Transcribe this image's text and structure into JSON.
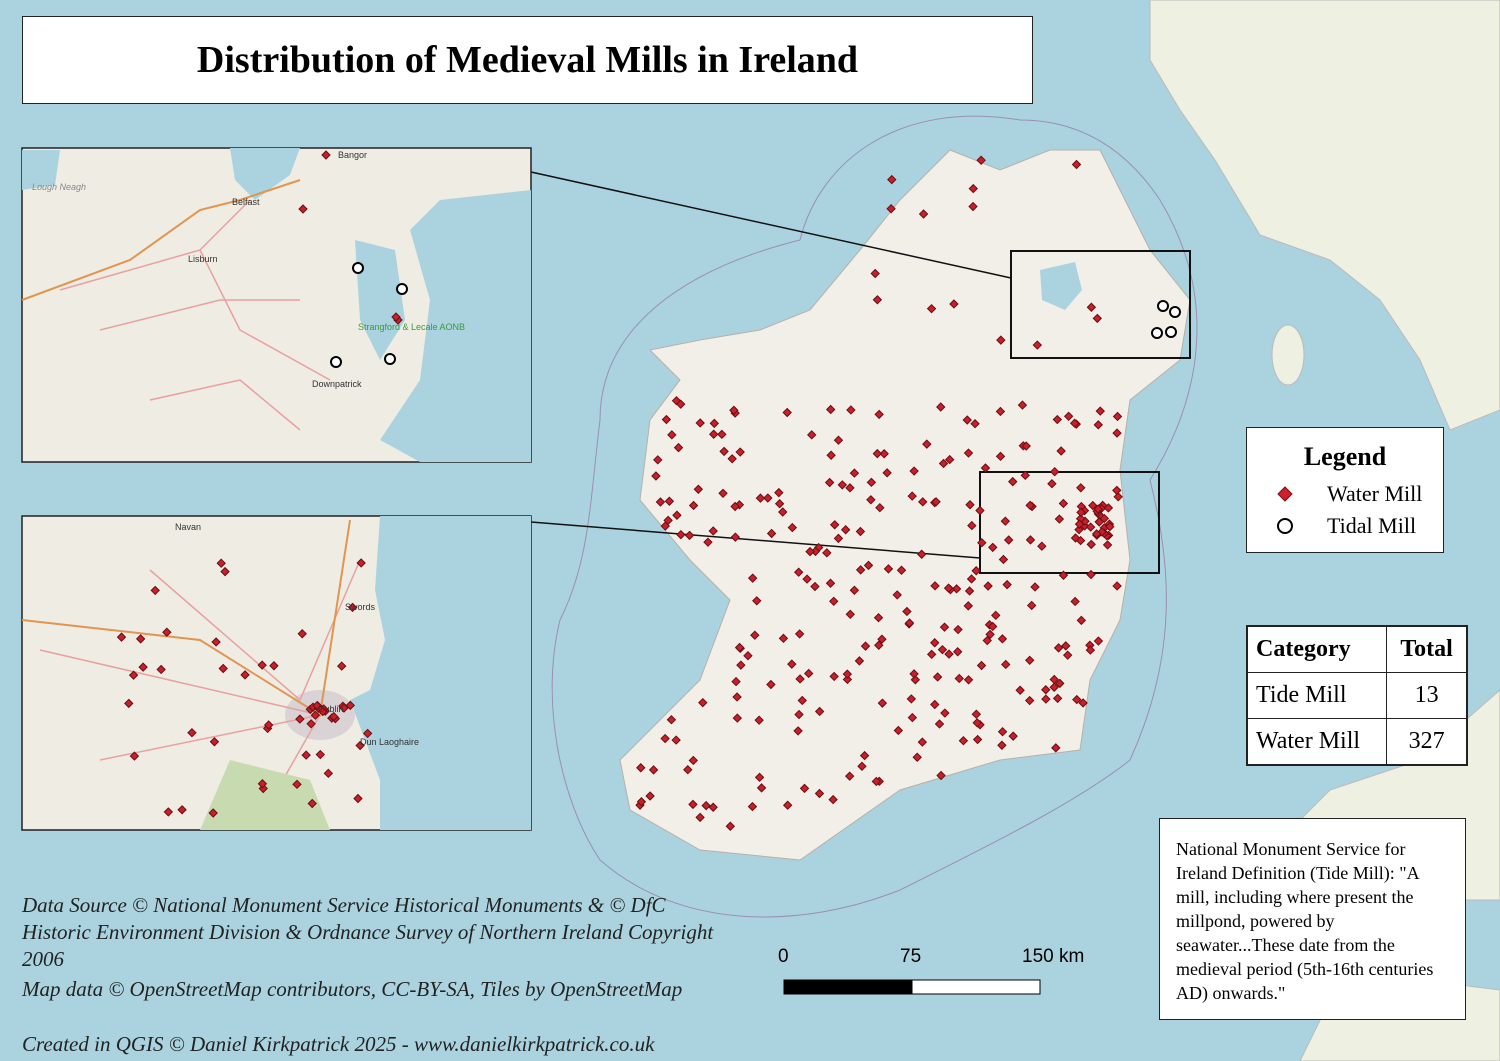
{
  "title": "Distribution of Medieval Mills in Ireland",
  "legend": {
    "title": "Legend",
    "items": [
      "Water Mill",
      "Tidal Mill"
    ]
  },
  "table": {
    "header": [
      "Category",
      "Total"
    ],
    "rows": [
      [
        "Tide Mill",
        13
      ],
      [
        "Water Mill",
        327
      ]
    ]
  },
  "definition": "National Monument Service for Ireland Definition (Tide Mill): \"A mill, including where present the millpond, powered by seawater...These date from the medieval period (5th-16th centuries AD) onwards.\"",
  "scale_bar": {
    "labels": [
      "0",
      "75",
      "150 km"
    ]
  },
  "credits": {
    "data_source": "Data Source © National Monument Service Historical Monuments & © DfC Historic Environment Division & Ordnance Survey of Northern Ireland Copyright 2006",
    "map_data": "Map data © OpenStreetMap contributors, CC-BY-SA, Tiles by OpenStreetMap",
    "created": "Created in QGIS © Daniel Kirkpatrick 2025 - www.danielkirkpatrick.co.uk"
  },
  "insets": {
    "north": {
      "labels": [
        "Lough Neagh",
        "Bangor",
        "Belfast",
        "Lisburn",
        "Strangford & Lecale AONB",
        "Downpatrick"
      ]
    },
    "dublin": {
      "labels": [
        "Navan",
        "Swords",
        "Dublin",
        "Dun Laoghaire"
      ]
    }
  }
}
